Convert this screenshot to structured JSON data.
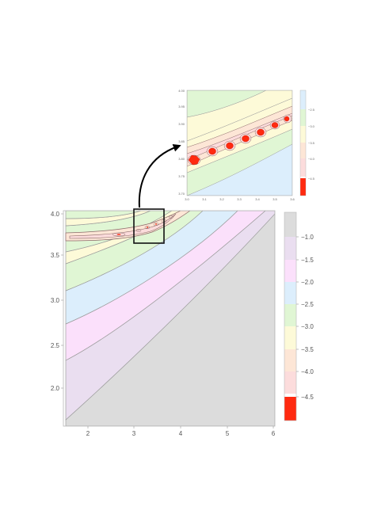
{
  "chart_data": [
    {
      "type": "contour",
      "role": "main",
      "xlim": [
        1.4,
        6.05
      ],
      "ylim": [
        1.5,
        4.02
      ],
      "x_ticks": [
        "2",
        "3",
        "4",
        "5",
        "6"
      ],
      "y_ticks": [
        "2.0",
        "2.5",
        "3.0",
        "3.5",
        "4.0"
      ],
      "legend_levels": [
        "−1.0",
        "−1.5",
        "−2.0",
        "−2.5",
        "−3.0",
        "−3.5",
        "−4.0",
        "−4.5"
      ],
      "band_colors": [
        "#dcdcdc",
        "#eadef0",
        "#fbe0fb",
        "#dceefc",
        "#e0f6d4",
        "#fdfad8",
        "#fde6d6",
        "#fcdcdc",
        "#ff2a10"
      ],
      "inset_box": {
        "x": [
          3.0,
          3.65
        ],
        "y": [
          3.66,
          4.02
        ]
      }
    },
    {
      "type": "contour",
      "role": "inset",
      "xlim": [
        3.0,
        3.6
      ],
      "ylim": [
        3.7,
        4.0
      ],
      "x_ticks": [
        "3.0",
        "3.1",
        "3.2",
        "3.3",
        "3.4",
        "3.5",
        "3.6"
      ],
      "y_ticks": [
        "3.70",
        "3.75",
        "3.80",
        "3.85",
        "3.90",
        "3.95",
        "4.00"
      ],
      "legend_levels": [
        "−2.5",
        "−3.0",
        "−3.5",
        "−4.0",
        "−4.5"
      ],
      "band_colors": [
        "#dceefc",
        "#e0f6d4",
        "#fdfad8",
        "#fde6d6",
        "#fcdcdc",
        "#ff2a10"
      ]
    }
  ]
}
